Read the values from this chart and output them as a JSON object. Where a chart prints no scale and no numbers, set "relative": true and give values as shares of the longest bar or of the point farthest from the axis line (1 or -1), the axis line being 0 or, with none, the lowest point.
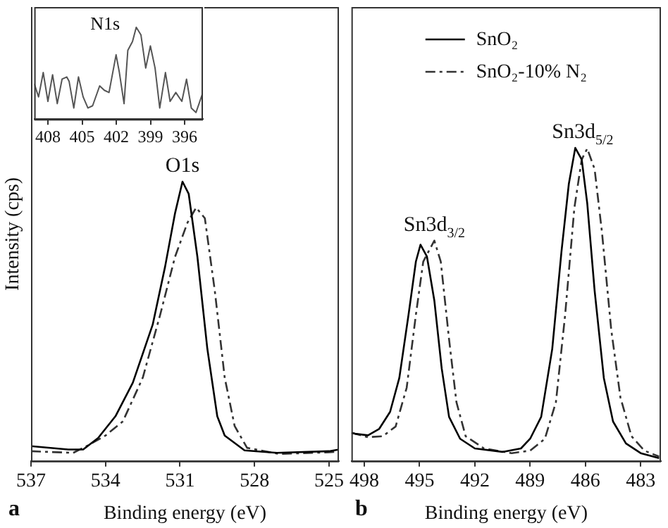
{
  "chart_data": [
    {
      "type": "line",
      "xlabel": "Binding energy (eV)",
      "ylabel": "Intensity (cps)",
      "relative": true,
      "xlim": [
        537,
        524.6
      ],
      "xticks": [
        537,
        534,
        531,
        528,
        525
      ],
      "tick_labels": "x",
      "marker": "none",
      "annotations": [
        "a",
        {
          "text": "O1s",
          "x": 530.9,
          "y": 1
        }
      ],
      "series": [
        {
          "color": "#000000",
          "line_style": "solid",
          "x": [
            537,
            535.5,
            534.9,
            534.3,
            533.6,
            532.9,
            532.1,
            531.6,
            531.2,
            530.9,
            530.65,
            530.3,
            529.9,
            529.5,
            529.2,
            528.4,
            527.1,
            525,
            524.6
          ],
          "values": [
            0.053,
            0.041,
            0.041,
            0.082,
            0.16,
            0.28,
            0.488,
            0.696,
            0.887,
            1,
            0.956,
            0.731,
            0.402,
            0.16,
            0.091,
            0.038,
            0.029,
            0.035,
            0.041
          ]
        },
        {
          "color": "#333333",
          "line_style": "dashed",
          "x": [
            537,
            535.3,
            534.7,
            534,
            533.3,
            532.5,
            531.8,
            531.2,
            530.7,
            530.35,
            530,
            529.6,
            529.2,
            528.8,
            528.3,
            527,
            525,
            524.6
          ],
          "values": [
            0.035,
            0.029,
            0.056,
            0.091,
            0.142,
            0.298,
            0.523,
            0.731,
            0.853,
            0.907,
            0.869,
            0.61,
            0.298,
            0.125,
            0.047,
            0.025,
            0.031,
            0.034
          ]
        }
      ]
    },
    {
      "type": "line",
      "relative": true,
      "xlim": [
        409.2,
        394.4
      ],
      "xticks": [
        408,
        405,
        402,
        399,
        396
      ],
      "tick_labels": "x",
      "marker": "none",
      "annotations": [
        "N1s"
      ],
      "series": [
        {
          "color": "#555555",
          "line_style": "solid",
          "x": [
            409.2,
            408.82,
            408.41,
            408,
            407.59,
            407.18,
            406.76,
            406.35,
            406.14,
            405.73,
            405.32,
            404.91,
            404.49,
            404.08,
            403.46,
            403.05,
            402.64,
            402.02,
            401.73,
            401.32,
            400.99,
            400.58,
            400.25,
            399.84,
            399.42,
            399.01,
            398.6,
            398.19,
            397.69,
            397.28,
            396.78,
            396.25,
            395.84,
            395.42,
            395.01,
            394.47
          ],
          "values": [
            0.386,
            0.242,
            0.507,
            0.193,
            0.483,
            0.169,
            0.435,
            0.459,
            0.411,
            0.121,
            0.459,
            0.242,
            0.121,
            0.145,
            0.362,
            0.314,
            0.29,
            0.7,
            0.507,
            0.169,
            0.749,
            0.845,
            1,
            0.918,
            0.556,
            0.797,
            0.556,
            0.121,
            0.507,
            0.193,
            0.29,
            0.193,
            0.435,
            0.121,
            0.072,
            0.266
          ]
        }
      ]
    },
    {
      "type": "line",
      "xlabel": "Binding energy (eV)",
      "relative": true,
      "xlim": [
        498.7,
        481.9
      ],
      "xticks": [
        498,
        495,
        492,
        489,
        486,
        483
      ],
      "tick_labels": "x",
      "marker": "none",
      "legend": "top",
      "annotations": [
        "b",
        {
          "text": "Sn3d$_{3/2}$",
          "x": 494.2,
          "y": 0.704
        },
        {
          "text": "Sn3d$_{5/2}$",
          "x": 486.15,
          "y": 1
        }
      ],
      "series": [
        {
          "name": "SnO₂",
          "color": "#000000",
          "line_style": "solid",
          "x": [
            498.7,
            498.5,
            497.8,
            497.2,
            496.6,
            496.1,
            495.6,
            495.2,
            494.95,
            494.6,
            494.2,
            493.8,
            493.4,
            492.8,
            492,
            490.5,
            489.5,
            489,
            488.4,
            487.8,
            487.3,
            486.9,
            486.55,
            486.2,
            485.9,
            485.5,
            485,
            484.5,
            483.8,
            483,
            482
          ],
          "values": [
            0.09,
            0.087,
            0.082,
            0.102,
            0.157,
            0.265,
            0.467,
            0.637,
            0.691,
            0.653,
            0.513,
            0.296,
            0.141,
            0.071,
            0.04,
            0.029,
            0.04,
            0.071,
            0.141,
            0.358,
            0.668,
            0.885,
            1,
            0.963,
            0.823,
            0.544,
            0.265,
            0.126,
            0.056,
            0.025,
            0.009
          ]
        },
        {
          "name": "SnO₂-10% N₂",
          "color": "#333333",
          "line_style": "dashed",
          "x": [
            498.7,
            497.8,
            497,
            496.3,
            495.7,
            495.2,
            494.8,
            494.2,
            493.85,
            493.4,
            493,
            492.5,
            491.5,
            490,
            489,
            488.2,
            487.6,
            487.1,
            486.6,
            486.2,
            485.9,
            485.5,
            485.1,
            484.6,
            484.1,
            483.5,
            482.8,
            482
          ],
          "values": [
            0.09,
            0.076,
            0.079,
            0.11,
            0.234,
            0.467,
            0.637,
            0.704,
            0.637,
            0.389,
            0.188,
            0.079,
            0.04,
            0.025,
            0.033,
            0.071,
            0.188,
            0.467,
            0.808,
            0.963,
            0.998,
            0.932,
            0.73,
            0.42,
            0.203,
            0.079,
            0.033,
            0.014
          ]
        }
      ]
    }
  ]
}
